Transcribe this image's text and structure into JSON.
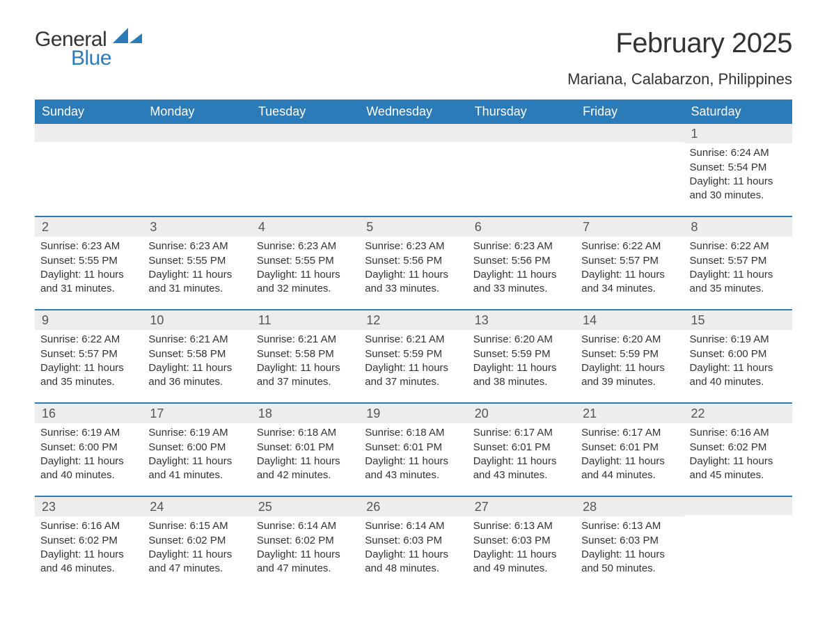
{
  "logo": {
    "word1": "General",
    "word2": "Blue",
    "accent_color": "#2b7bb9"
  },
  "title": "February 2025",
  "location": "Mariana, Calabarzon, Philippines",
  "weekdays": [
    "Sunday",
    "Monday",
    "Tuesday",
    "Wednesday",
    "Thursday",
    "Friday",
    "Saturday"
  ],
  "colors": {
    "header_bg": "#2b7bb9",
    "header_text": "#ffffff",
    "daynum_bg": "#ededed",
    "week_divider": "#2b7bb9",
    "text": "#333333",
    "page_bg": "#ffffff"
  },
  "fonts": {
    "title_size_pt": 30,
    "location_size_pt": 17,
    "weekday_size_pt": 14,
    "body_size_pt": 11
  },
  "weeks": [
    [
      {
        "day": null
      },
      {
        "day": null
      },
      {
        "day": null
      },
      {
        "day": null
      },
      {
        "day": null
      },
      {
        "day": null
      },
      {
        "day": 1,
        "sunrise": "Sunrise: 6:24 AM",
        "sunset": "Sunset: 5:54 PM",
        "daylight": "Daylight: 11 hours and 30 minutes."
      }
    ],
    [
      {
        "day": 2,
        "sunrise": "Sunrise: 6:23 AM",
        "sunset": "Sunset: 5:55 PM",
        "daylight": "Daylight: 11 hours and 31 minutes."
      },
      {
        "day": 3,
        "sunrise": "Sunrise: 6:23 AM",
        "sunset": "Sunset: 5:55 PM",
        "daylight": "Daylight: 11 hours and 31 minutes."
      },
      {
        "day": 4,
        "sunrise": "Sunrise: 6:23 AM",
        "sunset": "Sunset: 5:55 PM",
        "daylight": "Daylight: 11 hours and 32 minutes."
      },
      {
        "day": 5,
        "sunrise": "Sunrise: 6:23 AM",
        "sunset": "Sunset: 5:56 PM",
        "daylight": "Daylight: 11 hours and 33 minutes."
      },
      {
        "day": 6,
        "sunrise": "Sunrise: 6:23 AM",
        "sunset": "Sunset: 5:56 PM",
        "daylight": "Daylight: 11 hours and 33 minutes."
      },
      {
        "day": 7,
        "sunrise": "Sunrise: 6:22 AM",
        "sunset": "Sunset: 5:57 PM",
        "daylight": "Daylight: 11 hours and 34 minutes."
      },
      {
        "day": 8,
        "sunrise": "Sunrise: 6:22 AM",
        "sunset": "Sunset: 5:57 PM",
        "daylight": "Daylight: 11 hours and 35 minutes."
      }
    ],
    [
      {
        "day": 9,
        "sunrise": "Sunrise: 6:22 AM",
        "sunset": "Sunset: 5:57 PM",
        "daylight": "Daylight: 11 hours and 35 minutes."
      },
      {
        "day": 10,
        "sunrise": "Sunrise: 6:21 AM",
        "sunset": "Sunset: 5:58 PM",
        "daylight": "Daylight: 11 hours and 36 minutes."
      },
      {
        "day": 11,
        "sunrise": "Sunrise: 6:21 AM",
        "sunset": "Sunset: 5:58 PM",
        "daylight": "Daylight: 11 hours and 37 minutes."
      },
      {
        "day": 12,
        "sunrise": "Sunrise: 6:21 AM",
        "sunset": "Sunset: 5:59 PM",
        "daylight": "Daylight: 11 hours and 37 minutes."
      },
      {
        "day": 13,
        "sunrise": "Sunrise: 6:20 AM",
        "sunset": "Sunset: 5:59 PM",
        "daylight": "Daylight: 11 hours and 38 minutes."
      },
      {
        "day": 14,
        "sunrise": "Sunrise: 6:20 AM",
        "sunset": "Sunset: 5:59 PM",
        "daylight": "Daylight: 11 hours and 39 minutes."
      },
      {
        "day": 15,
        "sunrise": "Sunrise: 6:19 AM",
        "sunset": "Sunset: 6:00 PM",
        "daylight": "Daylight: 11 hours and 40 minutes."
      }
    ],
    [
      {
        "day": 16,
        "sunrise": "Sunrise: 6:19 AM",
        "sunset": "Sunset: 6:00 PM",
        "daylight": "Daylight: 11 hours and 40 minutes."
      },
      {
        "day": 17,
        "sunrise": "Sunrise: 6:19 AM",
        "sunset": "Sunset: 6:00 PM",
        "daylight": "Daylight: 11 hours and 41 minutes."
      },
      {
        "day": 18,
        "sunrise": "Sunrise: 6:18 AM",
        "sunset": "Sunset: 6:01 PM",
        "daylight": "Daylight: 11 hours and 42 minutes."
      },
      {
        "day": 19,
        "sunrise": "Sunrise: 6:18 AM",
        "sunset": "Sunset: 6:01 PM",
        "daylight": "Daylight: 11 hours and 43 minutes."
      },
      {
        "day": 20,
        "sunrise": "Sunrise: 6:17 AM",
        "sunset": "Sunset: 6:01 PM",
        "daylight": "Daylight: 11 hours and 43 minutes."
      },
      {
        "day": 21,
        "sunrise": "Sunrise: 6:17 AM",
        "sunset": "Sunset: 6:01 PM",
        "daylight": "Daylight: 11 hours and 44 minutes."
      },
      {
        "day": 22,
        "sunrise": "Sunrise: 6:16 AM",
        "sunset": "Sunset: 6:02 PM",
        "daylight": "Daylight: 11 hours and 45 minutes."
      }
    ],
    [
      {
        "day": 23,
        "sunrise": "Sunrise: 6:16 AM",
        "sunset": "Sunset: 6:02 PM",
        "daylight": "Daylight: 11 hours and 46 minutes."
      },
      {
        "day": 24,
        "sunrise": "Sunrise: 6:15 AM",
        "sunset": "Sunset: 6:02 PM",
        "daylight": "Daylight: 11 hours and 47 minutes."
      },
      {
        "day": 25,
        "sunrise": "Sunrise: 6:14 AM",
        "sunset": "Sunset: 6:02 PM",
        "daylight": "Daylight: 11 hours and 47 minutes."
      },
      {
        "day": 26,
        "sunrise": "Sunrise: 6:14 AM",
        "sunset": "Sunset: 6:03 PM",
        "daylight": "Daylight: 11 hours and 48 minutes."
      },
      {
        "day": 27,
        "sunrise": "Sunrise: 6:13 AM",
        "sunset": "Sunset: 6:03 PM",
        "daylight": "Daylight: 11 hours and 49 minutes."
      },
      {
        "day": 28,
        "sunrise": "Sunrise: 6:13 AM",
        "sunset": "Sunset: 6:03 PM",
        "daylight": "Daylight: 11 hours and 50 minutes."
      },
      {
        "day": null
      }
    ]
  ]
}
